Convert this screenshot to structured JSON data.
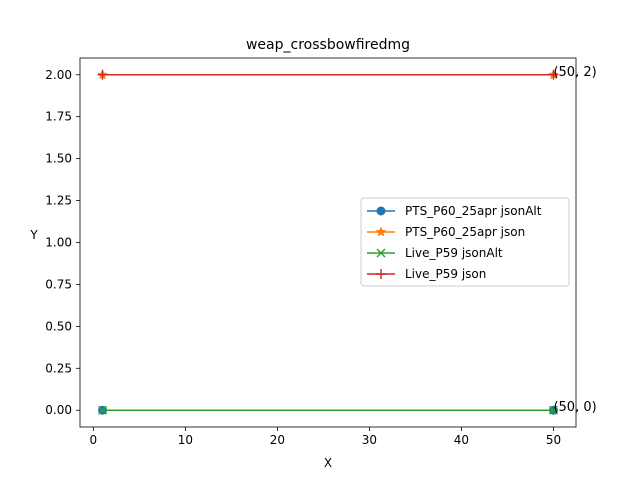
{
  "chart_data": {
    "type": "line",
    "title": "weap_crossbowfiredmg",
    "xlabel": "X",
    "ylabel": "Y",
    "xlim": [
      -1.45,
      52.45
    ],
    "ylim": [
      -0.1,
      2.1
    ],
    "xticks": [
      0,
      10,
      20,
      30,
      40,
      50
    ],
    "xtick_labels": [
      "0",
      "10",
      "20",
      "30",
      "40",
      "50"
    ],
    "yticks": [
      0,
      0.25,
      0.5,
      0.75,
      1.0,
      1.25,
      1.5,
      1.75,
      2.0
    ],
    "ytick_labels": [
      "0.00",
      "0.25",
      "0.50",
      "0.75",
      "1.00",
      "1.25",
      "1.50",
      "1.75",
      "2.00"
    ],
    "grid": false,
    "legend_position": "center-right",
    "series": [
      {
        "name": "PTS_P60_25apr jsonAlt",
        "color": "#1f77b4",
        "marker": "circle",
        "x": [
          1,
          50
        ],
        "y": [
          0,
          0
        ]
      },
      {
        "name": "PTS_P60_25apr json",
        "color": "#ff7f0e",
        "marker": "star",
        "x": [
          1,
          50
        ],
        "y": [
          2,
          2
        ]
      },
      {
        "name": "Live_P59 jsonAlt",
        "color": "#2ca02c",
        "marker": "x",
        "x": [
          1,
          50
        ],
        "y": [
          0,
          0
        ]
      },
      {
        "name": "Live_P59 json",
        "color": "#d62728",
        "marker": "plus",
        "x": [
          1,
          50
        ],
        "y": [
          2,
          2
        ]
      }
    ],
    "annotations": [
      {
        "text": "(50, 2)",
        "x": 50,
        "y": 2
      },
      {
        "text": "(50, 0)",
        "x": 50,
        "y": 0
      }
    ]
  }
}
